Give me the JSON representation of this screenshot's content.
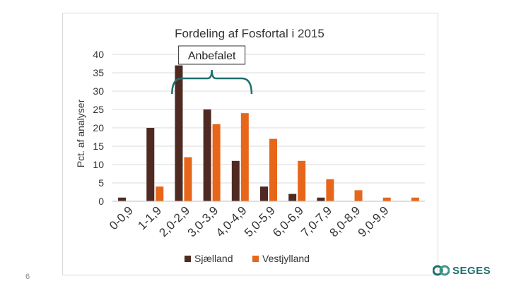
{
  "slide": {
    "number": "6"
  },
  "logo": {
    "text": "SEGES",
    "color": "#1f6f6b"
  },
  "chart_data": {
    "type": "bar",
    "title": "Fordeling af Fosfortal i 2015",
    "xlabel": "",
    "ylabel": "Pct. af analyser",
    "ylim": [
      0,
      40
    ],
    "yticks": [
      "0",
      "5",
      "10",
      "15",
      "20",
      "25",
      "30",
      "35",
      "40"
    ],
    "categories": [
      "0-0,9",
      "1-1,9",
      "2,0-2,9",
      "3,0-3,9",
      "4,0-4,9",
      "5,0-5,9",
      "6,0-6,9",
      "7,0-7,9",
      "8,0-8,9",
      "9,0-9,9",
      ""
    ],
    "series": [
      {
        "name": "Sjælland",
        "color": "#4e2a23",
        "values": [
          1,
          20,
          37,
          25,
          11,
          4,
          2,
          1,
          0,
          0,
          0
        ]
      },
      {
        "name": "Vestjylland",
        "color": "#e8661a",
        "values": [
          0,
          4,
          12,
          21,
          24,
          17,
          11,
          6,
          3,
          1,
          1
        ]
      }
    ],
    "grid": true,
    "legend_position": "bottom",
    "annotation": {
      "text": "Anbefalet",
      "bracket_from_category": 2,
      "bracket_to_category": 4,
      "color": "#1f6f6b"
    }
  }
}
